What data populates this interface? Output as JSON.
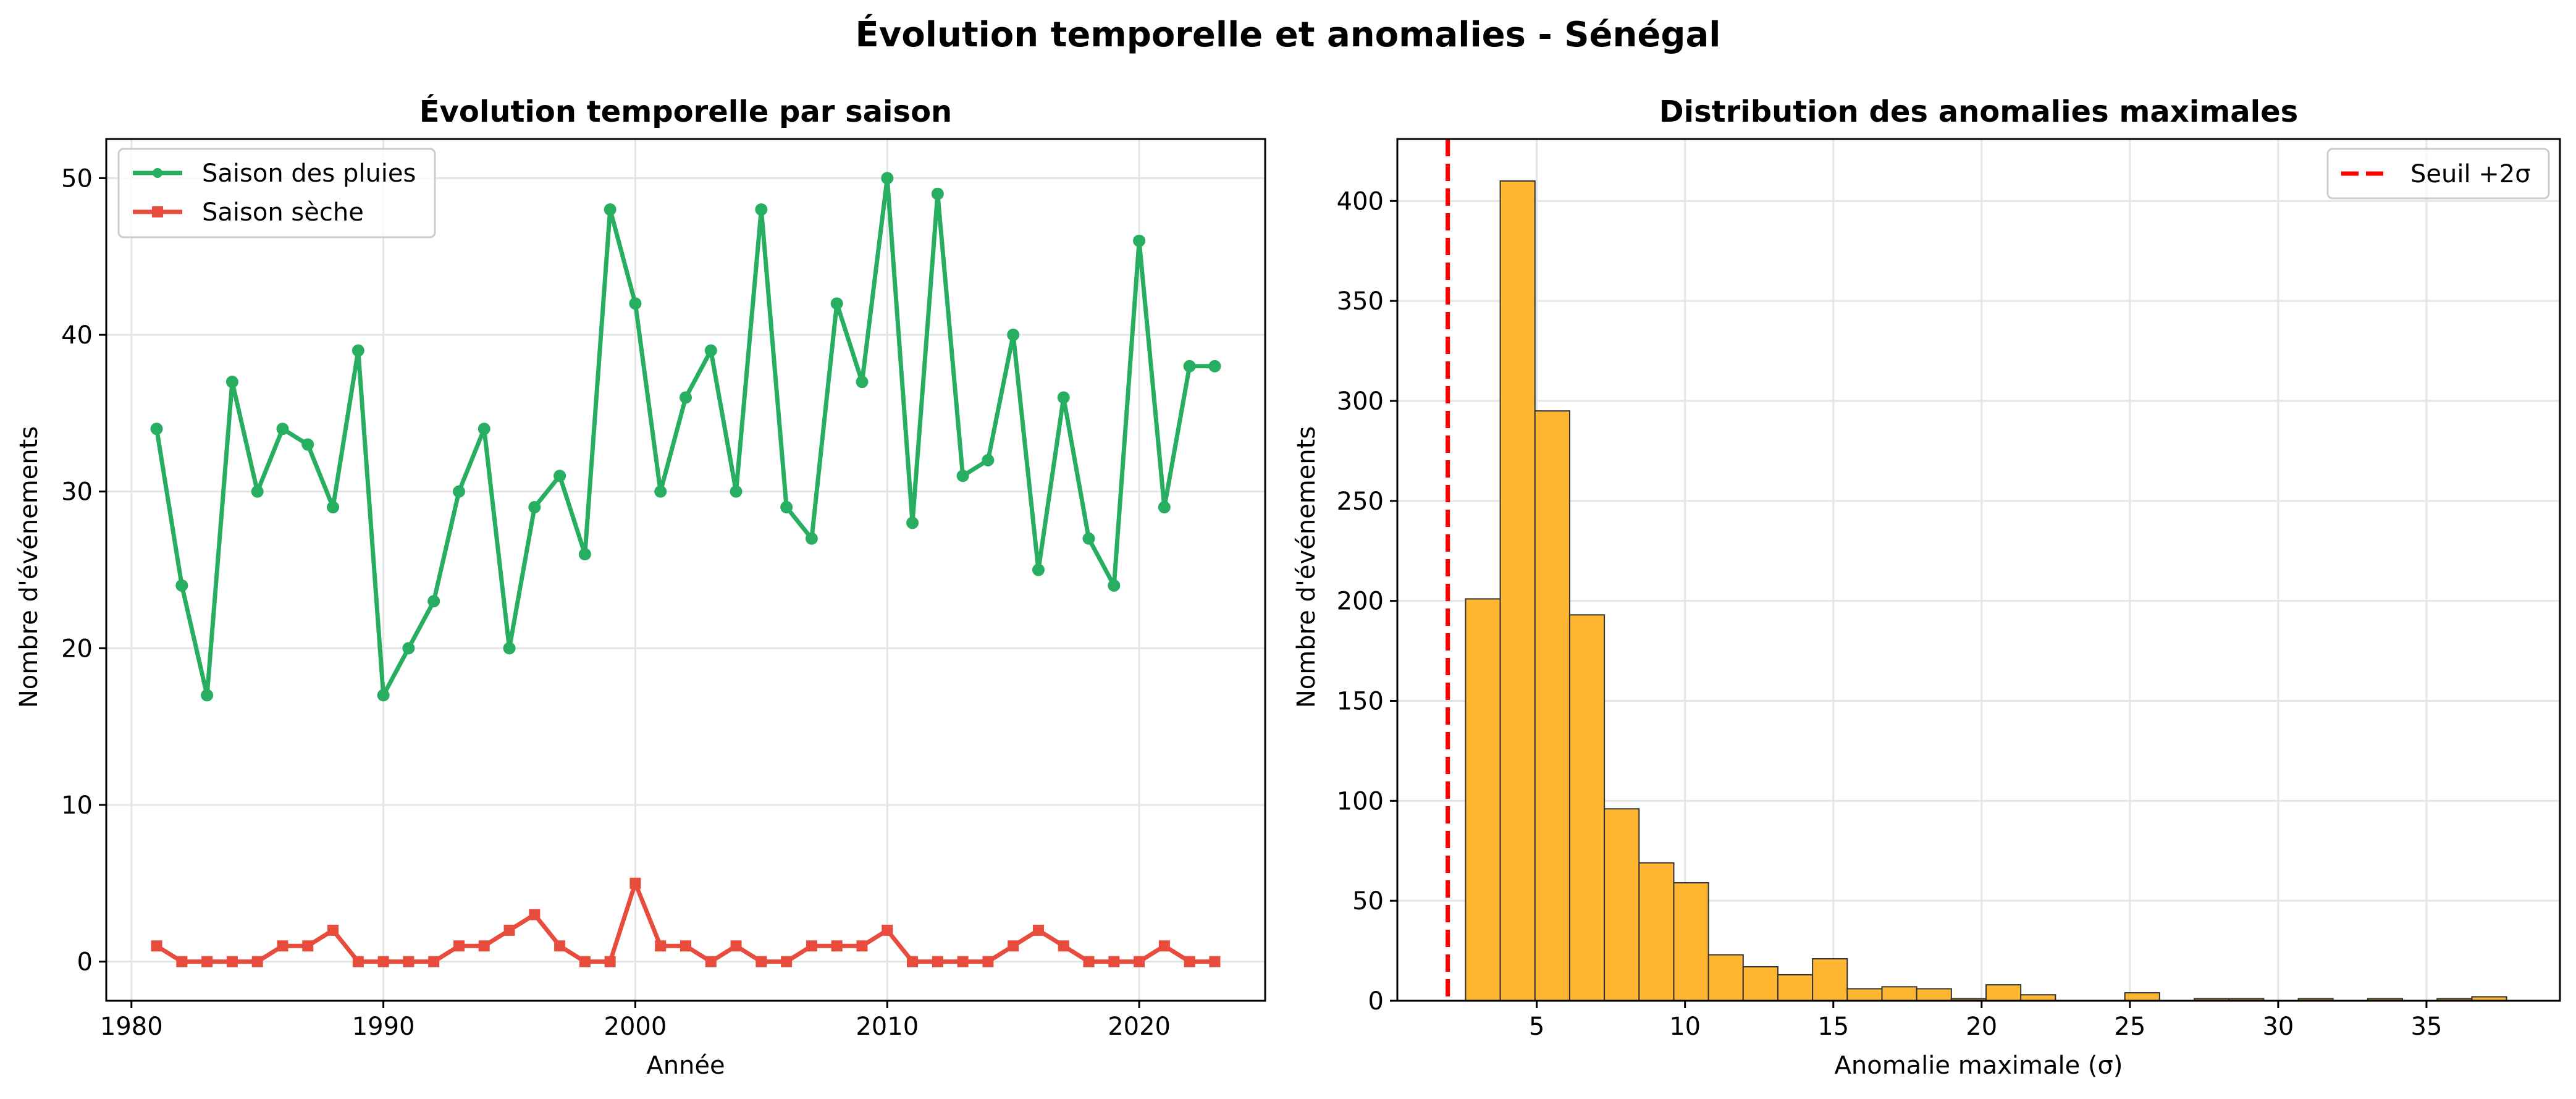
{
  "figure": {
    "title": "Évolution temporelle et anomalies - Sénégal"
  },
  "colors": {
    "rain": "#27ae60",
    "dry": "#e74c3c",
    "hist_fill": "#ffb732",
    "hist_edge": "#333333",
    "threshold": "#ff0000",
    "grid": "#e5e5e5"
  },
  "chart_data": [
    {
      "type": "line",
      "title": "Évolution temporelle par saison",
      "xlabel": "Année",
      "ylabel": "Nombre d'événements",
      "xlim": [
        1979,
        2025
      ],
      "ylim": [
        -2.5,
        52.5
      ],
      "xticks": [
        1980,
        1990,
        2000,
        2010,
        2020
      ],
      "yticks": [
        0,
        10,
        20,
        30,
        40,
        50
      ],
      "grid": true,
      "legend_position": "upper left",
      "x": [
        1981,
        1982,
        1983,
        1984,
        1985,
        1986,
        1987,
        1988,
        1989,
        1990,
        1991,
        1992,
        1993,
        1994,
        1995,
        1996,
        1997,
        1998,
        1999,
        2000,
        2001,
        2002,
        2003,
        2004,
        2005,
        2006,
        2007,
        2008,
        2009,
        2010,
        2011,
        2012,
        2013,
        2014,
        2015,
        2016,
        2017,
        2018,
        2019,
        2020,
        2021,
        2022,
        2023
      ],
      "series": [
        {
          "name": "Saison des pluies",
          "marker": "circle",
          "color": "#27ae60",
          "values": [
            34,
            24,
            17,
            37,
            30,
            34,
            33,
            29,
            39,
            17,
            20,
            23,
            30,
            34,
            20,
            29,
            31,
            26,
            48,
            42,
            30,
            36,
            39,
            30,
            48,
            29,
            27,
            42,
            37,
            50,
            28,
            49,
            31,
            32,
            40,
            25,
            36,
            27,
            24,
            46,
            29,
            38,
            38
          ]
        },
        {
          "name": "Saison sèche",
          "marker": "square",
          "color": "#e74c3c",
          "values": [
            1,
            0,
            0,
            0,
            0,
            1,
            1,
            2,
            0,
            0,
            0,
            0,
            1,
            1,
            2,
            3,
            1,
            0,
            0,
            5,
            1,
            1,
            0,
            1,
            0,
            0,
            1,
            1,
            1,
            2,
            0,
            0,
            0,
            0,
            1,
            2,
            1,
            0,
            0,
            0,
            1,
            0,
            0
          ]
        }
      ]
    },
    {
      "type": "histogram",
      "title": "Distribution des anomalies maximales",
      "xlabel": "Anomalie maximale (σ)",
      "ylabel": "Nombre d'événements",
      "xlim": [
        0.3,
        39.5
      ],
      "ylim": [
        0,
        431
      ],
      "xticks": [
        5,
        10,
        15,
        20,
        25,
        30,
        35
      ],
      "yticks": [
        0,
        50,
        100,
        150,
        200,
        250,
        300,
        350,
        400
      ],
      "grid": true,
      "legend_position": "upper right",
      "bin_start": 2.6,
      "bin_width": 1.17,
      "counts": [
        201,
        410,
        295,
        193,
        96,
        69,
        59,
        23,
        17,
        13,
        21,
        6,
        7,
        6,
        1,
        8,
        3,
        0,
        0,
        4,
        0,
        1,
        1,
        0,
        1,
        0,
        1,
        0,
        1,
        2
      ],
      "threshold": {
        "label": "Seuil +2σ",
        "x": 2.0
      }
    }
  ]
}
